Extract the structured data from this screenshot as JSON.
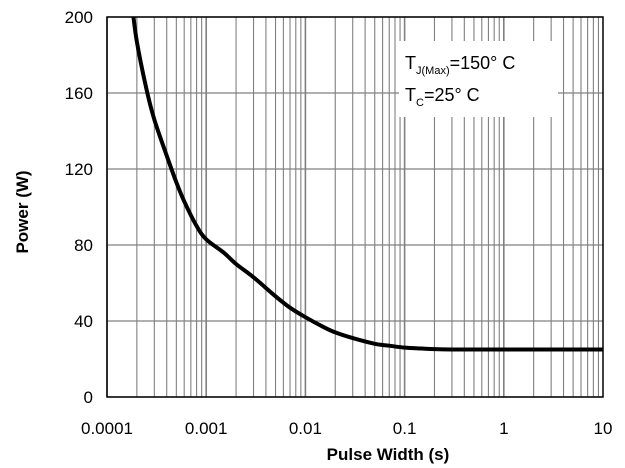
{
  "chart_data": {
    "type": "line",
    "x_scale": "log",
    "xlim": [
      0.0001,
      10
    ],
    "ylim": [
      0,
      200
    ],
    "xlabel": "Pulse Width (s)",
    "ylabel": "Power (W)",
    "x_ticks": [
      "0.0001",
      "0.001",
      "0.01",
      "0.1",
      "1",
      "10"
    ],
    "y_ticks": [
      "0",
      "40",
      "80",
      "120",
      "160",
      "200"
    ],
    "grid": true,
    "annotation": {
      "line1_main": "T",
      "line1_sub": "J(Max)",
      "line1_rest": "=150° C",
      "line2_main": "T",
      "line2_sub": "C",
      "line2_rest": "=25° C"
    },
    "series": [
      {
        "color": "#000000",
        "x": [
          0.00018,
          0.0002,
          0.00025,
          0.0003,
          0.0004,
          0.0005,
          0.0006,
          0.0008,
          0.001,
          0.0015,
          0.002,
          0.003,
          0.005,
          0.007,
          0.01,
          0.015,
          0.02,
          0.03,
          0.05,
          0.07,
          0.1,
          0.15,
          0.2,
          0.3,
          0.5,
          1,
          2,
          5,
          10
        ],
        "y": [
          205,
          187,
          162,
          146,
          127,
          113,
          103,
          90,
          83,
          76,
          70,
          63,
          53,
          47,
          42,
          37,
          34,
          31,
          28,
          27,
          26,
          25.5,
          25.2,
          25,
          25,
          25,
          25,
          25,
          25
        ]
      }
    ]
  }
}
